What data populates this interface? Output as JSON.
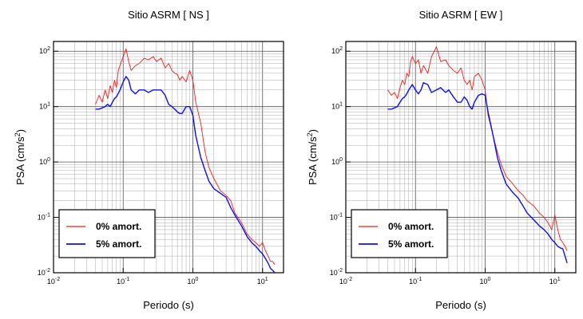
{
  "chart_data": [
    {
      "type": "line",
      "title": "Sitio ASRM [ NS ]",
      "xlabel": "Periodo (s)",
      "ylabel": "PSA (cm/s",
      "ylabel_sup": "2",
      "ylabel_close": ")",
      "xscale": "log",
      "yscale": "log",
      "xlim": [
        0.01,
        20
      ],
      "ylim": [
        0.01,
        150
      ],
      "x_ticks": [
        {
          "base": "10",
          "exp": "-2"
        },
        {
          "base": "10",
          "exp": "-1"
        },
        {
          "base": "10",
          "exp": "0"
        },
        {
          "base": "10",
          "exp": "1"
        }
      ],
      "y_ticks": [
        {
          "base": "10",
          "exp": "-2"
        },
        {
          "base": "10",
          "exp": "-1"
        },
        {
          "base": "10",
          "exp": "0"
        },
        {
          "base": "10",
          "exp": "1"
        },
        {
          "base": "10",
          "exp": "2"
        }
      ],
      "grid": true,
      "legend_position": "bottom-left",
      "series": [
        {
          "name": "0% amort.",
          "color": "#e8201c",
          "x": [
            0.04,
            0.045,
            0.05,
            0.055,
            0.06,
            0.065,
            0.07,
            0.075,
            0.08,
            0.085,
            0.09,
            0.1,
            0.11,
            0.12,
            0.13,
            0.15,
            0.17,
            0.2,
            0.23,
            0.27,
            0.3,
            0.35,
            0.4,
            0.45,
            0.5,
            0.55,
            0.6,
            0.65,
            0.7,
            0.8,
            0.9,
            1.0,
            1.1,
            1.3,
            1.5,
            1.7,
            2.0,
            2.5,
            3.0,
            3.5,
            4.0,
            5.0,
            6.0,
            7.0,
            8.0,
            9.0,
            10.0,
            11.0,
            12.0,
            13.0,
            14.0,
            15.0
          ],
          "y": [
            11,
            16,
            12,
            20,
            14,
            24,
            18,
            30,
            22,
            45,
            55,
            80,
            110,
            65,
            45,
            55,
            60,
            75,
            70,
            80,
            65,
            75,
            50,
            60,
            45,
            40,
            38,
            30,
            35,
            28,
            45,
            30,
            12,
            5,
            1.5,
            0.8,
            0.5,
            0.3,
            0.25,
            0.2,
            0.12,
            0.08,
            0.05,
            0.04,
            0.035,
            0.03,
            0.035,
            0.025,
            0.02,
            0.016,
            0.016,
            0.014
          ]
        },
        {
          "name": "5% amort.",
          "color": "#1010e0",
          "x": [
            0.04,
            0.045,
            0.05,
            0.055,
            0.06,
            0.065,
            0.07,
            0.075,
            0.08,
            0.09,
            0.1,
            0.11,
            0.12,
            0.13,
            0.15,
            0.17,
            0.2,
            0.23,
            0.27,
            0.3,
            0.35,
            0.4,
            0.45,
            0.5,
            0.55,
            0.6,
            0.65,
            0.7,
            0.8,
            0.9,
            1.0,
            1.1,
            1.3,
            1.5,
            1.7,
            2.0,
            2.5,
            3.0,
            3.5,
            4.0,
            5.0,
            6.0,
            7.0,
            8.0,
            9.0,
            10.0,
            11.0,
            12.0,
            13.0,
            14.0,
            15.0
          ],
          "y": [
            9,
            9,
            9.5,
            10,
            11,
            10,
            12,
            14,
            15,
            20,
            28,
            35,
            30,
            20,
            17,
            20,
            20,
            18,
            20,
            20,
            20,
            16,
            11,
            10,
            9,
            8,
            7.5,
            7.5,
            10,
            10,
            7,
            3,
            1.2,
            0.7,
            0.45,
            0.33,
            0.27,
            0.23,
            0.15,
            0.11,
            0.07,
            0.045,
            0.035,
            0.03,
            0.025,
            0.022,
            0.018,
            0.015,
            0.012,
            0.011,
            0.01
          ]
        }
      ]
    },
    {
      "type": "line",
      "title": "Sitio ASRM [ EW ]",
      "xlabel": "Periodo (s)",
      "ylabel": "PSA (cm/s",
      "ylabel_sup": "2",
      "ylabel_close": ")",
      "xscale": "log",
      "yscale": "log",
      "xlim": [
        0.01,
        20
      ],
      "ylim": [
        0.01,
        150
      ],
      "x_ticks": [
        {
          "base": "10",
          "exp": "-2"
        },
        {
          "base": "10",
          "exp": "-1"
        },
        {
          "base": "10",
          "exp": "0"
        },
        {
          "base": "10",
          "exp": "1"
        }
      ],
      "y_ticks": [
        {
          "base": "10",
          "exp": "-2"
        },
        {
          "base": "10",
          "exp": "-1"
        },
        {
          "base": "10",
          "exp": "0"
        },
        {
          "base": "10",
          "exp": "1"
        },
        {
          "base": "10",
          "exp": "2"
        }
      ],
      "grid": true,
      "legend_position": "bottom-left",
      "series": [
        {
          "name": "0% amort.",
          "color": "#e8201c",
          "x": [
            0.04,
            0.045,
            0.05,
            0.055,
            0.06,
            0.065,
            0.07,
            0.075,
            0.08,
            0.085,
            0.09,
            0.1,
            0.11,
            0.12,
            0.13,
            0.15,
            0.17,
            0.2,
            0.23,
            0.27,
            0.3,
            0.35,
            0.4,
            0.45,
            0.5,
            0.55,
            0.6,
            0.65,
            0.7,
            0.8,
            0.9,
            1.0,
            1.1,
            1.3,
            1.5,
            1.7,
            2.0,
            2.5,
            3.0,
            3.5,
            4.0,
            5.0,
            6.0,
            7.0,
            8.0,
            9.0,
            10.0,
            11.0,
            12.0,
            13.0,
            14.0,
            15.0
          ],
          "y": [
            20,
            16,
            18,
            14,
            22,
            30,
            25,
            40,
            35,
            65,
            80,
            60,
            70,
            40,
            55,
            40,
            80,
            120,
            65,
            70,
            55,
            45,
            40,
            50,
            30,
            25,
            30,
            20,
            35,
            40,
            30,
            20,
            7,
            3,
            1.5,
            0.9,
            0.55,
            0.4,
            0.3,
            0.25,
            0.2,
            0.16,
            0.12,
            0.1,
            0.08,
            0.06,
            0.11,
            0.06,
            0.04,
            0.035,
            0.03,
            0.025
          ]
        },
        {
          "name": "5% amort.",
          "color": "#1010e0",
          "x": [
            0.04,
            0.045,
            0.05,
            0.055,
            0.06,
            0.065,
            0.07,
            0.075,
            0.08,
            0.09,
            0.1,
            0.11,
            0.12,
            0.13,
            0.15,
            0.17,
            0.2,
            0.23,
            0.27,
            0.3,
            0.35,
            0.4,
            0.45,
            0.5,
            0.55,
            0.6,
            0.65,
            0.7,
            0.8,
            0.9,
            1.0,
            1.1,
            1.3,
            1.5,
            1.7,
            2.0,
            2.5,
            3.0,
            3.5,
            4.0,
            5.0,
            6.0,
            7.0,
            8.0,
            9.0,
            10.0,
            11.0,
            12.0,
            13.0,
            14.0,
            15.0
          ],
          "y": [
            9,
            9,
            9.5,
            10,
            12,
            14,
            15,
            17,
            20,
            25,
            20,
            17,
            20,
            27,
            25,
            18,
            20,
            22,
            18,
            20,
            15,
            12,
            12,
            15,
            13,
            10,
            9,
            12,
            16,
            17,
            16,
            8,
            3,
            1.2,
            0.7,
            0.4,
            0.28,
            0.22,
            0.16,
            0.12,
            0.09,
            0.07,
            0.06,
            0.05,
            0.04,
            0.035,
            0.03,
            0.028,
            0.027,
            0.02,
            0.015
          ]
        }
      ]
    }
  ]
}
